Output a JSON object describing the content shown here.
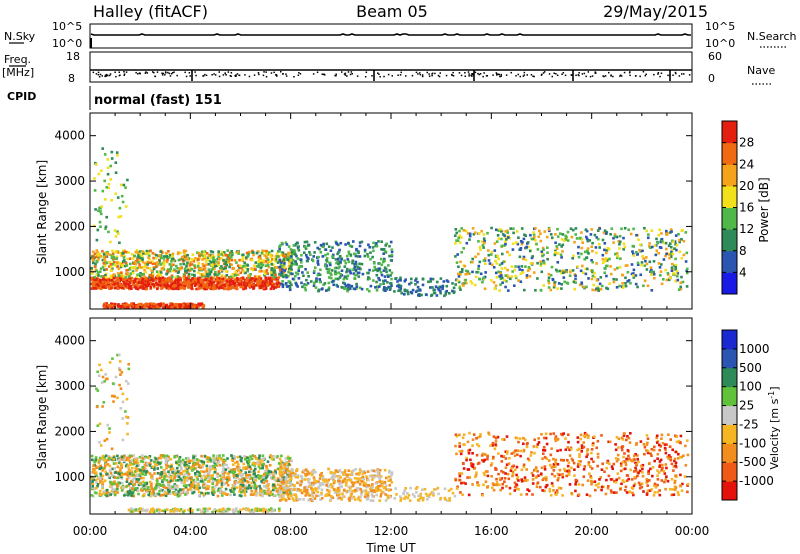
{
  "header": {
    "station": "Halley (fitACF)",
    "beam": "Beam 05",
    "date": "29/May/2015"
  },
  "strips": {
    "nsky_label": "N.Sky",
    "nsky_hi": "10^5",
    "nsky_lo": "10^0",
    "nsearch_label": "N.Search",
    "nsearch_hi": "10^5",
    "nsearch_lo": "10^0",
    "freq_label": "Freq.",
    "freq_unit": "[MHz]",
    "freq_hi": "18",
    "freq_lo": "8",
    "nave_label": "Nave",
    "nave_hi": "60",
    "nave_lo": "0",
    "cpid_label": "CPID",
    "cpid_value": "normal (fast) 151"
  },
  "colors": {
    "power_scale": [
      "#1a1ae6",
      "#2a55b0",
      "#2e8b57",
      "#4fb848",
      "#f2e01a",
      "#f5a31a",
      "#ef6a12",
      "#e41f10"
    ],
    "velocity_scale": [
      "#e3120b",
      "#ef5a16",
      "#f28e1e",
      "#f6b624",
      "#c8c8c8",
      "#5fc23a",
      "#2e8b57",
      "#2a55b0",
      "#1a2ad0"
    ]
  },
  "chart_data": [
    {
      "type": "line",
      "title": "N.Sky / N.Search",
      "x": [
        "00:00",
        "04:00",
        "08:00",
        "12:00",
        "16:00",
        "20:00",
        "00:00"
      ],
      "ylim": [
        "10^0",
        "10^5"
      ],
      "series": [
        {
          "name": "N.Sky",
          "level": "near 10^5, steady"
        }
      ]
    },
    {
      "type": "line",
      "title": "Freq. / Nave",
      "ylim": [
        8,
        18
      ],
      "series": [
        {
          "name": "Freq.",
          "values_mhz": [
            10.0
          ]
        },
        {
          "name": "Nave",
          "range": [
            0,
            60
          ]
        }
      ]
    },
    {
      "type": "heatmap",
      "xlabel": "Time UT",
      "ylabel": "Slant Range [km]",
      "x_ticks": [
        "00:00",
        "04:00",
        "08:00",
        "12:00",
        "16:00",
        "20:00",
        "00:00"
      ],
      "y_ticks": [
        1000,
        2000,
        3000,
        4000
      ],
      "ylim": [
        180,
        4500
      ],
      "xlim_hours": [
        0,
        24
      ],
      "colorbar": {
        "label": "Power [dB]",
        "ticks": [
          4,
          8,
          12,
          16,
          20,
          24,
          28
        ],
        "range": [
          0,
          32
        ]
      },
      "regions": [
        {
          "t0": 0.0,
          "t1": 7.5,
          "r0": 600,
          "r1": 1000,
          "level": "red/orange (24-30 dB)"
        },
        {
          "t0": 0.0,
          "t1": 8.0,
          "r0": 1000,
          "r1": 1500,
          "level": "green/orange (10-22 dB)"
        },
        {
          "t0": 0.5,
          "t1": 4.5,
          "r0": 230,
          "r1": 330,
          "level": "red (28 dB)"
        },
        {
          "t0": 7.5,
          "t1": 12.0,
          "r0": 600,
          "r1": 1700,
          "level": "blue/green (4-14 dB)"
        },
        {
          "t0": 14.5,
          "t1": 23.8,
          "r0": 600,
          "r1": 2000,
          "level": "blue/green/orange (4-24 dB)"
        }
      ]
    },
    {
      "type": "heatmap",
      "xlabel": "Time UT",
      "ylabel": "Slant Range [km]",
      "x_ticks": [
        "00:00",
        "04:00",
        "08:00",
        "12:00",
        "16:00",
        "20:00",
        "00:00"
      ],
      "y_ticks": [
        1000,
        2000,
        3000,
        4000
      ],
      "ylim": [
        180,
        4500
      ],
      "xlim_hours": [
        0,
        24
      ],
      "colorbar": {
        "label": "Velocity [m s^-1]",
        "ticks": [
          1000,
          500,
          100,
          25,
          -25,
          -100,
          -500,
          -1000
        ]
      },
      "regions": [
        {
          "t0": 0.0,
          "t1": 8.0,
          "r0": 600,
          "r1": 1500,
          "level": "orange/green (-100 to 100 m/s)"
        },
        {
          "t0": 7.5,
          "t1": 12.0,
          "r0": 500,
          "r1": 1200,
          "level": "grey/orange (-100 to 25 m/s)"
        },
        {
          "t0": 14.5,
          "t1": 23.8,
          "r0": 600,
          "r1": 2000,
          "level": "orange/red (-500 to -100 m/s)"
        }
      ]
    }
  ]
}
